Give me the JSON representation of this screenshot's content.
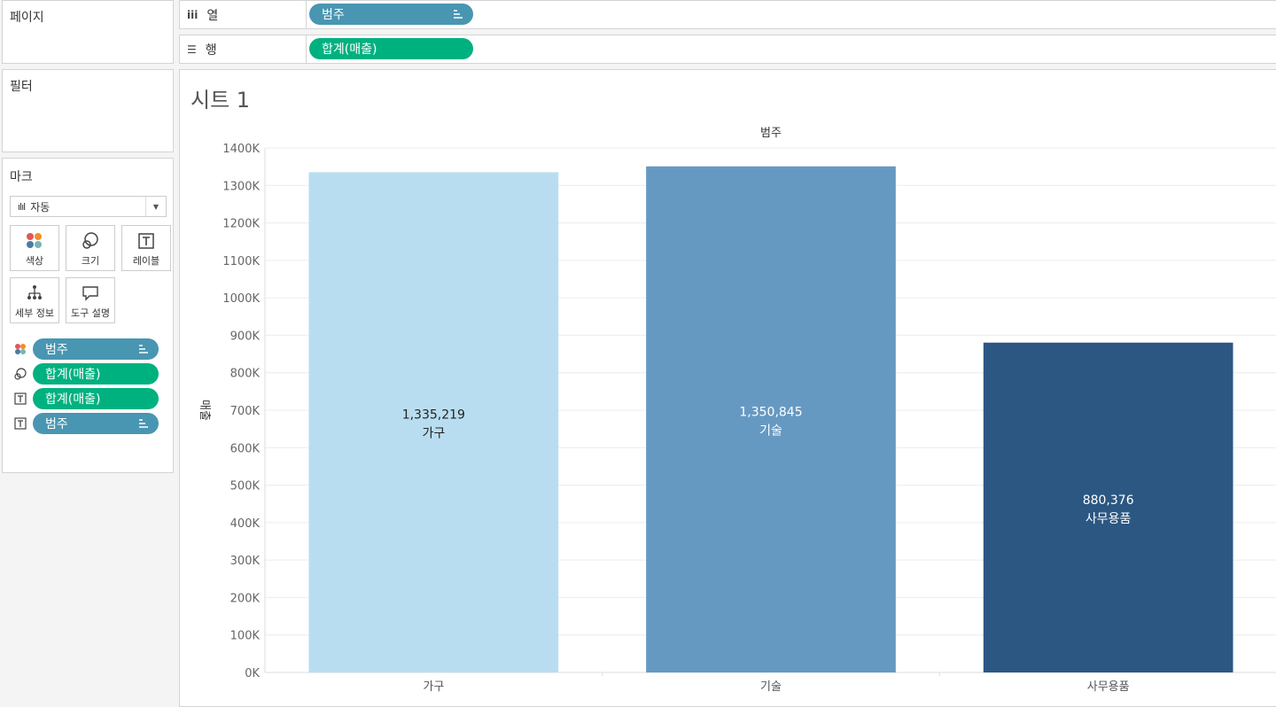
{
  "left_panel": {
    "pages_title": "페이지",
    "filters_title": "필터",
    "marks_title": "마크",
    "mark_type": "자동",
    "buttons": {
      "color": "색상",
      "size": "크기",
      "label": "레이블",
      "detail": "세부 정보",
      "tooltip": "도구 설명"
    },
    "mark_fields": [
      {
        "type": "color",
        "label": "범주",
        "kind": "dimension"
      },
      {
        "type": "size",
        "label": "합계(매출)",
        "kind": "measure"
      },
      {
        "type": "text",
        "label": "합계(매출)",
        "kind": "measure"
      },
      {
        "type": "text",
        "label": "범주",
        "kind": "dimension"
      }
    ]
  },
  "shelves": {
    "columns_label": "열",
    "columns_pill": "범주",
    "rows_label": "행",
    "rows_pill": "합계(매출)"
  },
  "sheet_title": "시트 1",
  "colors": {
    "dimension_pill": "#4996b2",
    "measure_pill": "#00b180"
  },
  "chart_data": {
    "type": "bar",
    "title": "",
    "column_header": "범주",
    "ylabel": "매출",
    "xlabel": "",
    "categories": [
      "가구",
      "기술",
      "사무용품"
    ],
    "values": [
      1335219,
      1350845,
      880376
    ],
    "value_labels": [
      "1,335,219",
      "1,350,845",
      "880,376"
    ],
    "colors": [
      "#b9ddf0",
      "#6699c2",
      "#2c5782"
    ],
    "label_text_colors": [
      "#222222",
      "#ffffff",
      "#ffffff"
    ],
    "ylim": [
      0,
      1400000
    ],
    "yticks": [
      0,
      100000,
      200000,
      300000,
      400000,
      500000,
      600000,
      700000,
      800000,
      900000,
      1000000,
      1100000,
      1200000,
      1300000,
      1400000
    ],
    "ytick_labels": [
      "0K",
      "100K",
      "200K",
      "300K",
      "400K",
      "500K",
      "600K",
      "700K",
      "800K",
      "900K",
      "1000K",
      "1100K",
      "1200K",
      "1300K",
      "1400K"
    ],
    "grid": true,
    "legend": "none"
  }
}
